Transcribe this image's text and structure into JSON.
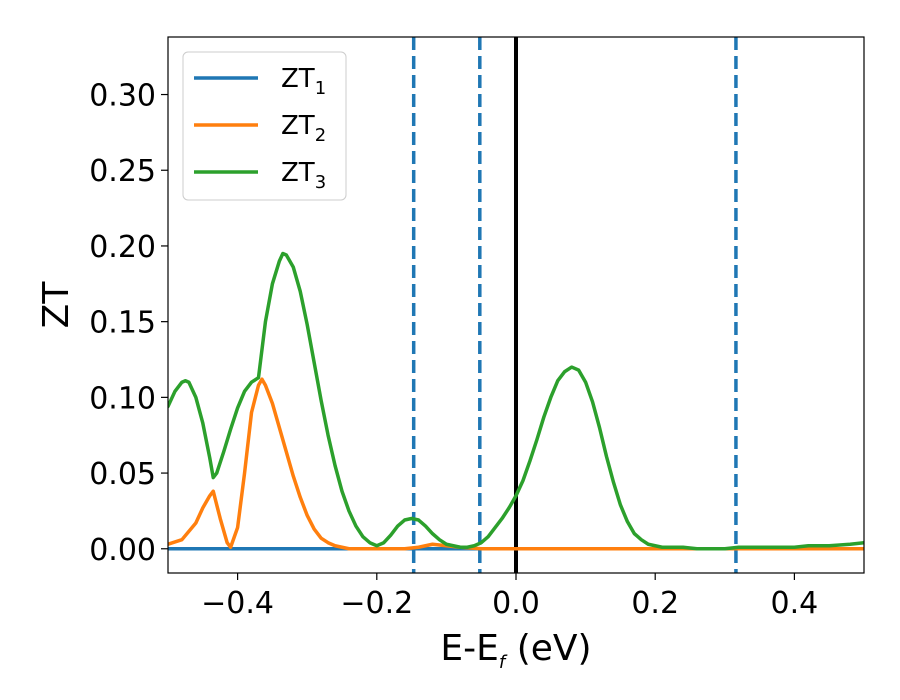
{
  "chart_data": {
    "type": "line",
    "xlabel": "E-E",
    "xlabel_sub": "f",
    "xlabel_unit": " (eV)",
    "ylabel": "ZT",
    "xlim": [
      -0.5,
      0.5
    ],
    "ylim": [
      -0.016,
      0.338
    ],
    "x_ticks": [
      -0.4,
      -0.2,
      0.0,
      0.2,
      0.4
    ],
    "x_tick_labels": [
      "−0.4",
      "−0.2",
      "0.0",
      "0.2",
      "0.4"
    ],
    "y_ticks": [
      0.0,
      0.05,
      0.1,
      0.15,
      0.2,
      0.25,
      0.3
    ],
    "y_tick_labels": [
      "0.00",
      "0.05",
      "0.10",
      "0.15",
      "0.20",
      "0.25",
      "0.30"
    ],
    "grid": false,
    "legend_position": "top-left",
    "vertical_lines": [
      {
        "x": -0.147,
        "style": "dashed",
        "color": "#1f77b4"
      },
      {
        "x": -0.052,
        "style": "dashed",
        "color": "#1f77b4"
      },
      {
        "x": 0.0,
        "style": "solid",
        "color": "#000000"
      },
      {
        "x": 0.316,
        "style": "dashed",
        "color": "#1f77b4"
      }
    ],
    "series": [
      {
        "name": "ZT",
        "sub": "1",
        "color": "#1f77b4",
        "x": [
          -0.5,
          0.5
        ],
        "y": [
          0.0,
          0.0
        ]
      },
      {
        "name": "ZT",
        "sub": "2",
        "color": "#ff7f0e",
        "x": [
          -0.5,
          -0.48,
          -0.46,
          -0.45,
          -0.44,
          -0.435,
          -0.425,
          -0.415,
          -0.41,
          -0.4,
          -0.39,
          -0.38,
          -0.37,
          -0.365,
          -0.36,
          -0.35,
          -0.34,
          -0.33,
          -0.32,
          -0.31,
          -0.3,
          -0.29,
          -0.28,
          -0.27,
          -0.26,
          -0.25,
          -0.24,
          -0.22,
          -0.2,
          -0.18,
          -0.16,
          -0.14,
          -0.12,
          -0.1,
          -0.08,
          -0.05,
          0.0,
          0.1,
          0.2,
          0.3,
          0.4,
          0.5
        ],
        "y": [
          0.003,
          0.006,
          0.017,
          0.027,
          0.035,
          0.038,
          0.02,
          0.004,
          0.001,
          0.014,
          0.05,
          0.09,
          0.108,
          0.112,
          0.108,
          0.096,
          0.08,
          0.064,
          0.048,
          0.034,
          0.022,
          0.013,
          0.007,
          0.004,
          0.002,
          0.001,
          0.0,
          0.0,
          0.0,
          0.0,
          0.0,
          0.001,
          0.003,
          0.002,
          0.001,
          0.0,
          0.0,
          0.0,
          0.0,
          0.0,
          0.0,
          0.0
        ]
      },
      {
        "name": "ZT",
        "sub": "3",
        "color": "#2ca02c",
        "x": [
          -0.5,
          -0.49,
          -0.48,
          -0.475,
          -0.47,
          -0.46,
          -0.45,
          -0.44,
          -0.435,
          -0.43,
          -0.42,
          -0.41,
          -0.4,
          -0.39,
          -0.38,
          -0.37,
          -0.36,
          -0.35,
          -0.34,
          -0.335,
          -0.33,
          -0.32,
          -0.31,
          -0.3,
          -0.29,
          -0.28,
          -0.27,
          -0.26,
          -0.25,
          -0.24,
          -0.23,
          -0.22,
          -0.21,
          -0.2,
          -0.19,
          -0.18,
          -0.17,
          -0.16,
          -0.15,
          -0.14,
          -0.13,
          -0.12,
          -0.11,
          -0.1,
          -0.09,
          -0.08,
          -0.07,
          -0.06,
          -0.05,
          -0.04,
          -0.03,
          -0.02,
          -0.01,
          0.0,
          0.01,
          0.02,
          0.03,
          0.04,
          0.05,
          0.06,
          0.07,
          0.08,
          0.09,
          0.1,
          0.11,
          0.12,
          0.13,
          0.14,
          0.15,
          0.16,
          0.17,
          0.18,
          0.19,
          0.2,
          0.21,
          0.22,
          0.24,
          0.26,
          0.28,
          0.3,
          0.32,
          0.35,
          0.38,
          0.4,
          0.42,
          0.45,
          0.48,
          0.5
        ],
        "y": [
          0.094,
          0.104,
          0.11,
          0.111,
          0.11,
          0.1,
          0.083,
          0.06,
          0.047,
          0.05,
          0.064,
          0.079,
          0.093,
          0.104,
          0.11,
          0.113,
          0.15,
          0.175,
          0.19,
          0.195,
          0.194,
          0.186,
          0.17,
          0.148,
          0.123,
          0.098,
          0.075,
          0.055,
          0.038,
          0.025,
          0.015,
          0.008,
          0.004,
          0.002,
          0.004,
          0.009,
          0.015,
          0.019,
          0.02,
          0.019,
          0.015,
          0.01,
          0.006,
          0.003,
          0.002,
          0.001,
          0.001,
          0.002,
          0.004,
          0.008,
          0.014,
          0.02,
          0.027,
          0.035,
          0.045,
          0.058,
          0.072,
          0.087,
          0.1,
          0.111,
          0.117,
          0.12,
          0.118,
          0.11,
          0.097,
          0.08,
          0.061,
          0.044,
          0.029,
          0.018,
          0.01,
          0.006,
          0.003,
          0.002,
          0.001,
          0.001,
          0.001,
          0.0,
          0.0,
          0.0,
          0.001,
          0.001,
          0.001,
          0.001,
          0.002,
          0.002,
          0.003,
          0.004
        ]
      }
    ]
  }
}
